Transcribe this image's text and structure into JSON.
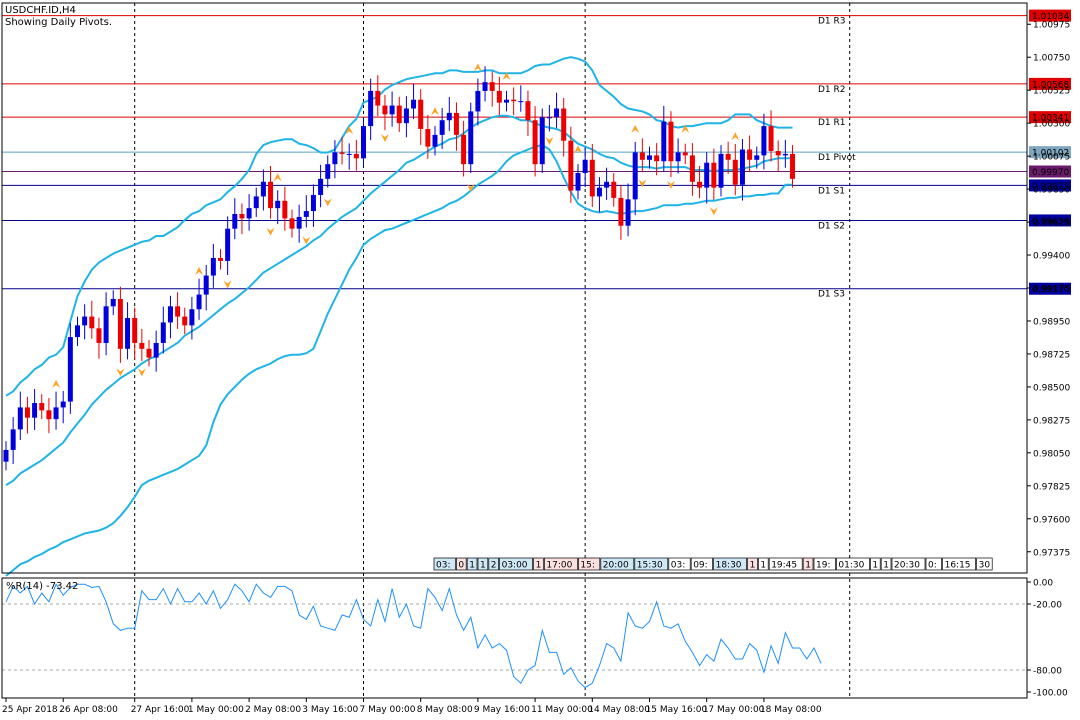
{
  "header": {
    "symbol": "USDCHF.ID,H4",
    "subtitle": "Showing Daily Pivots."
  },
  "colors": {
    "bull": "#0000dd",
    "bear": "#ee0000",
    "band": "#1eb4e6",
    "resistance": "#dd0000",
    "support": "#000088",
    "pivot": "#5aa0c8",
    "fractal": "#ffa020",
    "wpr": "#1e90ff",
    "axis": "#000000"
  },
  "chart_data": [
    {
      "type": "candlestick",
      "title": "USDCHF.ID,H4",
      "ylim": [
        0.9723,
        1.0112
      ],
      "y_ticks": [
        "1.00975",
        "1.00750",
        "1.00525",
        "1.00300",
        "1.00075",
        "0.99850",
        "0.99625",
        "0.99400",
        "0.99175",
        "0.98950",
        "0.98725",
        "0.98500",
        "0.98275",
        "0.98050",
        "0.97825",
        "0.97600",
        "0.97375"
      ],
      "x_ticks": [
        {
          "label": "25 Apr 2018",
          "index": 0
        },
        {
          "label": "26 Apr 08:00",
          "index": 8
        },
        {
          "label": "27 Apr 16:00",
          "index": 18
        },
        {
          "label": "1 May 00:00",
          "index": 26
        },
        {
          "label": "2 May 08:00",
          "index": 34
        },
        {
          "label": "3 May 16:00",
          "index": 42
        },
        {
          "label": "7 May 00:00",
          "index": 50
        },
        {
          "label": "8 May 08:00",
          "index": 58
        },
        {
          "label": "9 May 16:00",
          "index": 66
        },
        {
          "label": "11 May 00:00",
          "index": 74
        },
        {
          "label": "14 May 08:00",
          "index": 82
        },
        {
          "label": "15 May 16:00",
          "index": 90
        },
        {
          "label": "17 May 00:00",
          "index": 98
        },
        {
          "label": "18 May 08:00",
          "index": 106
        }
      ],
      "separators": [
        18,
        50,
        81,
        118
      ],
      "closes": [
        0.9807,
        0.9821,
        0.9836,
        0.9829,
        0.9839,
        0.9834,
        0.9828,
        0.9836,
        0.984,
        0.9884,
        0.9892,
        0.9898,
        0.989,
        0.988,
        0.9905,
        0.991,
        0.9876,
        0.9897,
        0.988,
        0.9876,
        0.987,
        0.988,
        0.9894,
        0.9905,
        0.9898,
        0.9892,
        0.9903,
        0.9913,
        0.9926,
        0.9938,
        0.9936,
        0.9958,
        0.9968,
        0.9965,
        0.9972,
        0.998,
        0.999,
        0.9972,
        0.9977,
        0.9965,
        0.9958,
        0.9966,
        0.997,
        0.9981,
        0.9992,
        1.0002,
        1.001,
        1.0009,
        1.0009,
        1.0006,
        1.0028,
        1.0052,
        1.0042,
        1.0036,
        1.0042,
        1.003,
        1.004,
        1.0046,
        1.0026,
        1.0014,
        1.0022,
        1.0032,
        1.0037,
        1.0022,
        1.0002,
        1.0038,
        1.0052,
        1.0058,
        1.0052,
        1.0044,
        1.0046,
        1.0045,
        1.0045,
        1.0032,
        1.0002,
        1.0034,
        1.0034,
        1.004,
        1.0018,
        0.9984,
        0.9996,
        1.0005,
        0.998,
        0.9986,
        0.999,
        0.9979,
        0.996,
        0.9978,
        1.001,
        1.0005,
        1.0008,
        1.0004,
        1.0031,
        1.0004,
        1.001,
        1.0008,
        0.999,
        0.9986,
        1.0003,
        0.9986,
        1.0009,
        1.0005,
        0.9988,
        1.0012,
        1.0005,
        1.0008,
        1.0028,
        1.0011,
        1.0008,
        1.0009,
        0.9992
      ],
      "bands_upper": [
        0.9844,
        0.9847,
        0.9853,
        0.9857,
        0.9862,
        0.9865,
        0.987,
        0.9872,
        0.9877,
        0.9895,
        0.9912,
        0.9922,
        0.993,
        0.9935,
        0.9938,
        0.9941,
        0.9943,
        0.9945,
        0.9947,
        0.9949,
        0.995,
        0.9953,
        0.9953,
        0.9956,
        0.9959,
        0.9964,
        0.9968,
        0.997,
        0.9974,
        0.9976,
        0.9978,
        0.9983,
        0.9987,
        0.9992,
        0.9998,
        1.0009,
        1.0015,
        1.0017,
        1.0018,
        1.0019,
        1.0019,
        1.0016,
        1.0015,
        1.0013,
        1.001,
        1.001,
        1.0012,
        1.002,
        1.0028,
        1.0033,
        1.0044,
        1.0046,
        1.0048,
        1.0053,
        1.0056,
        1.0058,
        1.006,
        1.0061,
        1.0062,
        1.0063,
        1.0064,
        1.0064,
        1.0066,
        1.0066,
        1.0065,
        1.0065,
        1.0065,
        1.0066,
        1.0066,
        1.0064,
        1.0064,
        1.0064,
        1.0064,
        1.0066,
        1.0069,
        1.007,
        1.007,
        1.0072,
        1.0074,
        1.0075,
        1.0074,
        1.0072,
        1.0066,
        1.0056,
        1.0052,
        1.0048,
        1.0043,
        1.004,
        1.0039,
        1.0038,
        1.0036,
        1.0032,
        1.0031,
        1.0028,
        1.0027,
        1.0028,
        1.0028,
        1.0029,
        1.003,
        1.003,
        1.003,
        1.0032,
        1.0036,
        1.0036,
        1.0036,
        1.0032,
        1.003,
        1.0028,
        1.0027,
        1.0027,
        1.0027
      ],
      "bands_middle": [
        0.9783,
        0.9786,
        0.9791,
        0.9794,
        0.9797,
        0.98,
        0.9804,
        0.9808,
        0.9812,
        0.9819,
        0.9825,
        0.9831,
        0.9838,
        0.9843,
        0.9848,
        0.9852,
        0.9856,
        0.9859,
        0.9862,
        0.9866,
        0.9869,
        0.9871,
        0.9874,
        0.9877,
        0.988,
        0.9885,
        0.9888,
        0.9891,
        0.9895,
        0.9899,
        0.9903,
        0.9907,
        0.991,
        0.9914,
        0.9918,
        0.9923,
        0.9928,
        0.9931,
        0.9934,
        0.9937,
        0.994,
        0.9943,
        0.9946,
        0.995,
        0.9953,
        0.9958,
        0.9962,
        0.9966,
        0.9969,
        0.9972,
        0.9977,
        0.9982,
        0.9986,
        0.999,
        0.9994,
        0.9998,
        1.0003,
        1.0005,
        1.0008,
        1.0011,
        1.0014,
        1.0016,
        1.0019,
        1.002,
        1.0023,
        1.0027,
        1.003,
        1.0032,
        1.0034,
        1.0035,
        1.0035,
        1.0034,
        1.0032,
        1.0032,
        1.003,
        1.0028,
        1.0027,
        1.0026,
        1.0024,
        1.002,
        1.0016,
        1.0014,
        1.0012,
        1.0009,
        1.0007,
        1.0006,
        1.0003,
        1.0001,
        1.0,
        1.0,
        1.0,
        0.9999,
        1.0,
        1.0,
        1.0,
        1.0,
        0.9998,
        0.9998,
        0.9998,
        0.9997,
        0.9998,
        0.9998,
        0.9998,
        0.9999,
        1.0,
        1.0001,
        1.0004,
        1.0005,
        1.0006,
        1.0006,
        1.0006
      ],
      "bands_lower": [
        0.9721,
        0.9725,
        0.9729,
        0.9731,
        0.9734,
        0.9736,
        0.9739,
        0.9741,
        0.9744,
        0.9746,
        0.9748,
        0.975,
        0.9751,
        0.9752,
        0.9754,
        0.9757,
        0.9762,
        0.9768,
        0.9775,
        0.9783,
        0.9786,
        0.9788,
        0.979,
        0.9792,
        0.9794,
        0.9797,
        0.98,
        0.9803,
        0.981,
        0.9826,
        0.9838,
        0.9845,
        0.985,
        0.9855,
        0.9859,
        0.9862,
        0.9864,
        0.9866,
        0.9869,
        0.9871,
        0.9872,
        0.9872,
        0.9873,
        0.9876,
        0.9888,
        0.99,
        0.991,
        0.992,
        0.993,
        0.9938,
        0.9947,
        0.9951,
        0.9954,
        0.9957,
        0.9958,
        0.996,
        0.9962,
        0.9964,
        0.9966,
        0.9968,
        0.997,
        0.9972,
        0.9975,
        0.9977,
        0.998,
        0.9984,
        0.9988,
        0.9991,
        0.9994,
        0.9998,
        1.0004,
        1.0008,
        1.001,
        1.0012,
        1.0014,
        1.0015,
        1.0012,
        1.0004,
        0.9993,
        0.9983,
        0.9975,
        0.9972,
        0.997,
        0.9969,
        0.997,
        0.9969,
        0.9968,
        0.9969,
        0.997,
        0.997,
        0.9971,
        0.9972,
        0.9974,
        0.9974,
        0.9974,
        0.9975,
        0.9975,
        0.9976,
        0.9977,
        0.9977,
        0.9978,
        0.9979,
        0.9979,
        0.998,
        0.998,
        0.9981,
        0.9981,
        0.9982,
        0.9982,
        0.9988,
        0.9988
      ],
      "fractals_up": [
        7,
        27,
        38,
        48,
        60,
        66,
        70,
        80,
        88,
        95,
        102,
        119
      ],
      "fractals_down": [
        16,
        19,
        31,
        37,
        42,
        45,
        53,
        65,
        76,
        89,
        93,
        99
      ],
      "pivot_lines": [
        {
          "name": "D1 R3",
          "value": 1.01034,
          "label": "1.01034",
          "kind": "resistance"
        },
        {
          "name": "D1 R2",
          "value": 1.00568,
          "label": "1.00568",
          "kind": "resistance"
        },
        {
          "name": "D1 R1",
          "value": 1.00341,
          "label": "1.00341",
          "kind": "resistance"
        },
        {
          "name": "D1 Pivot",
          "value": 1.00102,
          "label": "1.00102",
          "kind": "pivot"
        },
        {
          "name": "",
          "value": 0.9997,
          "label": "0.99970",
          "kind": "current"
        },
        {
          "name": "D1 S1",
          "value": 0.99875,
          "label": "0.99875",
          "kind": "support"
        },
        {
          "name": "D1 S2",
          "value": 0.99636,
          "label": "0.99636",
          "kind": "support"
        },
        {
          "name": "D1 S3",
          "value": 0.9917,
          "label": "0.99170",
          "kind": "support"
        }
      ],
      "time_tags": [
        {
          "text": "03:",
          "bg": "#cfe8f6"
        },
        {
          "text": "0",
          "bg": "#fde0e0"
        },
        {
          "text": "1",
          "bg": "#cfe8f6"
        },
        {
          "text": "1",
          "bg": "#cfe8f6"
        },
        {
          "text": "2",
          "bg": "#cfe8f6"
        },
        {
          "text": "03:00",
          "bg": "#cfe8f6"
        },
        {
          "text": "1",
          "bg": "#fde0e0"
        },
        {
          "text": "17:00",
          "bg": "#fde0e0"
        },
        {
          "text": "15:",
          "bg": "#fde0e0"
        },
        {
          "text": "20:00",
          "bg": "#cfe8f6"
        },
        {
          "text": "15:30",
          "bg": "#cfe8f6"
        },
        {
          "text": "03:",
          "bg": "#ffffff"
        },
        {
          "text": "09:",
          "bg": "#ffffff"
        },
        {
          "text": "18:30",
          "bg": "#cfe8f6"
        },
        {
          "text": "1",
          "bg": "#fde0e0"
        },
        {
          "text": "1",
          "bg": "#ffffff"
        },
        {
          "text": "19:45",
          "bg": "#ffffff"
        },
        {
          "text": "1",
          "bg": "#fde0e0"
        },
        {
          "text": "19:",
          "bg": "#ffffff"
        },
        {
          "text": "01:30",
          "bg": "#ffffff"
        },
        {
          "text": "1",
          "bg": "#ffffff"
        },
        {
          "text": "1",
          "bg": "#ffffff"
        },
        {
          "text": "20:30",
          "bg": "#ffffff"
        },
        {
          "text": "0:",
          "bg": "#ffffff"
        },
        {
          "text": "16:15",
          "bg": "#ffffff"
        },
        {
          "text": "30",
          "bg": "#ffffff"
        }
      ]
    },
    {
      "type": "line",
      "title": "%R(14) -73.42",
      "ylim": [
        -100,
        0
      ],
      "y_ticks": [
        {
          "label": "0.00",
          "value": 0
        },
        {
          "label": "-20.00",
          "value": -20
        },
        {
          "label": "-80.00",
          "value": -80
        },
        {
          "label": "-100.00",
          "value": -100
        }
      ],
      "levels": [
        -20,
        -80
      ],
      "values": [
        -18,
        -4,
        -10,
        -4,
        -20,
        -10,
        -18,
        -2,
        -12,
        -5,
        -2,
        -2,
        -5,
        -4,
        -18,
        -38,
        -44,
        -42,
        -42,
        -8,
        -16,
        -16,
        -6,
        -20,
        -6,
        -18,
        -18,
        -10,
        -20,
        -8,
        -24,
        -16,
        -2,
        -8,
        -18,
        -2,
        -10,
        -14,
        -4,
        -4,
        -8,
        -30,
        -34,
        -22,
        -40,
        -42,
        -44,
        -30,
        -32,
        -16,
        -34,
        -40,
        -16,
        -36,
        -6,
        -32,
        -20,
        -40,
        -42,
        -6,
        -14,
        -26,
        -6,
        -30,
        -44,
        -32,
        -60,
        -48,
        -60,
        -56,
        -62,
        -86,
        -92,
        -80,
        -76,
        -44,
        -64,
        -64,
        -84,
        -78,
        -90,
        -96,
        -92,
        -76,
        -56,
        -60,
        -72,
        -28,
        -40,
        -42,
        -36,
        -18,
        -40,
        -42,
        -38,
        -54,
        -64,
        -76,
        -66,
        -72,
        -52,
        -60,
        -70,
        -70,
        -56,
        -62,
        -82,
        -58,
        -74,
        -46,
        -60,
        -60,
        -70,
        -60,
        -74
      ]
    }
  ]
}
